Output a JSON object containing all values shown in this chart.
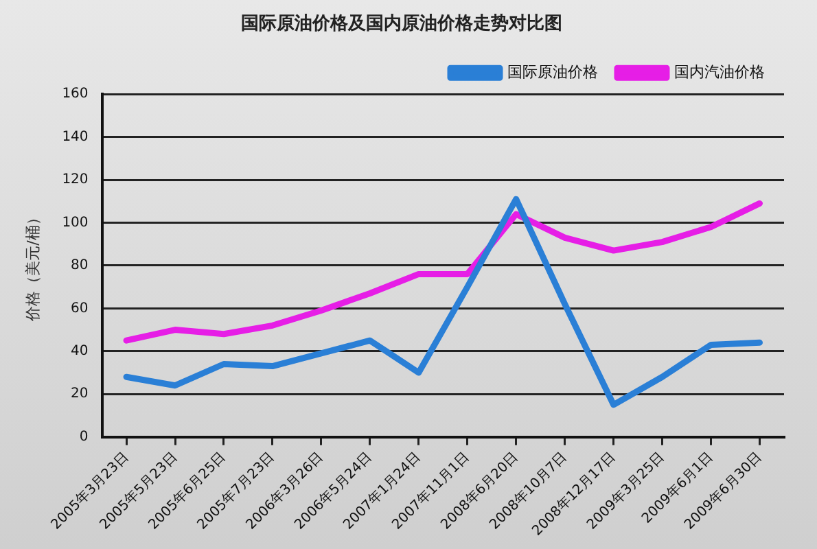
{
  "chart_data": {
    "type": "line",
    "title": "国际原油价格及国内原油价格走势对比图",
    "ylabel": "价格（美元/桶）",
    "categories": [
      "2005年3月23日",
      "2005年5月23日",
      "2005年6月25日",
      "2005年7月23日",
      "2006年3月26日",
      "2006年5月24日",
      "2007年1月24日",
      "2007年11月1日",
      "2008年6月20日",
      "2008年10月7日",
      "2008年12月17日",
      "2009年3月25日",
      "2009年6月1日",
      "2009年6月30日"
    ],
    "series": [
      {
        "name": "国际原油价格",
        "color": "#2a7fd6",
        "values": [
          28,
          24,
          34,
          33,
          39,
          45,
          30,
          70,
          111,
          62,
          15,
          28,
          43,
          44
        ]
      },
      {
        "name": "国内汽油价格",
        "color": "#e61ee6",
        "values": [
          45,
          50,
          48,
          52,
          59,
          67,
          76,
          76,
          104,
          93,
          87,
          91,
          98,
          109
        ]
      }
    ],
    "ylim": [
      0,
      160
    ],
    "yticks": [
      0,
      20,
      40,
      60,
      80,
      100,
      120,
      140,
      160
    ],
    "grid": "y",
    "legend": "top right",
    "marker": "none",
    "line_style": "solid"
  }
}
